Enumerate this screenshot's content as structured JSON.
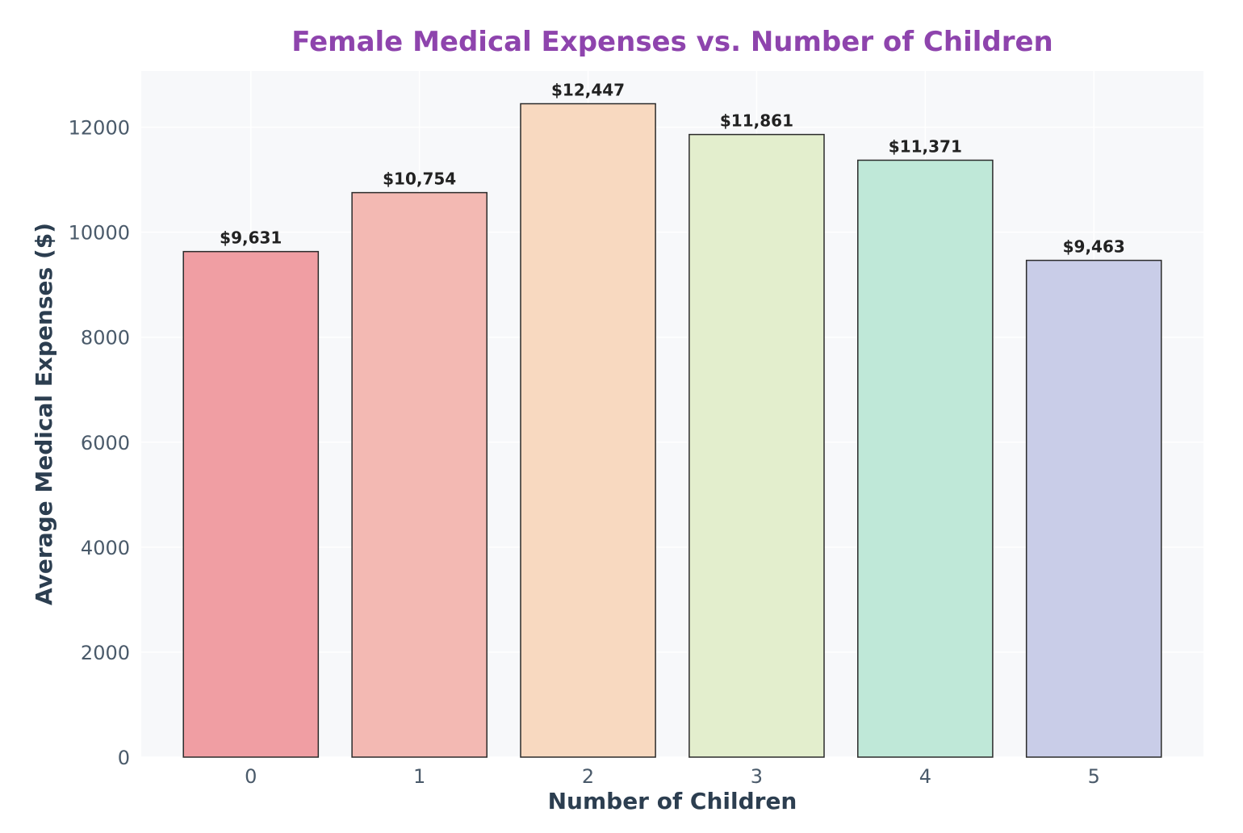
{
  "chart_data": {
    "type": "bar",
    "title": "Female Medical Expenses vs. Number of Children",
    "xlabel": "Number of Children",
    "ylabel": "Average Medical Expenses ($)",
    "categories": [
      "0",
      "1",
      "2",
      "3",
      "4",
      "5"
    ],
    "values": [
      9631,
      10754,
      12447,
      11861,
      11371,
      9463
    ],
    "value_labels": [
      "$9,631",
      "$10,754",
      "$12,447",
      "$11,861",
      "$11,371",
      "$9,463"
    ],
    "ylim": [
      0,
      13070
    ],
    "yticks": [
      0,
      2000,
      4000,
      6000,
      8000,
      10000,
      12000
    ],
    "ytick_labels": [
      "0",
      "2000",
      "4000",
      "6000",
      "8000",
      "10000",
      "12000"
    ],
    "bar_colors": [
      "#f09ea3",
      "#f3b9b3",
      "#f8d9c0",
      "#e3eecd",
      "#bfe8d8",
      "#c9cde8"
    ],
    "bar_edge_color": "#2b2b2b",
    "plot_background": "#f7f8fa",
    "title_color": "#8e44ad",
    "grid": true
  }
}
